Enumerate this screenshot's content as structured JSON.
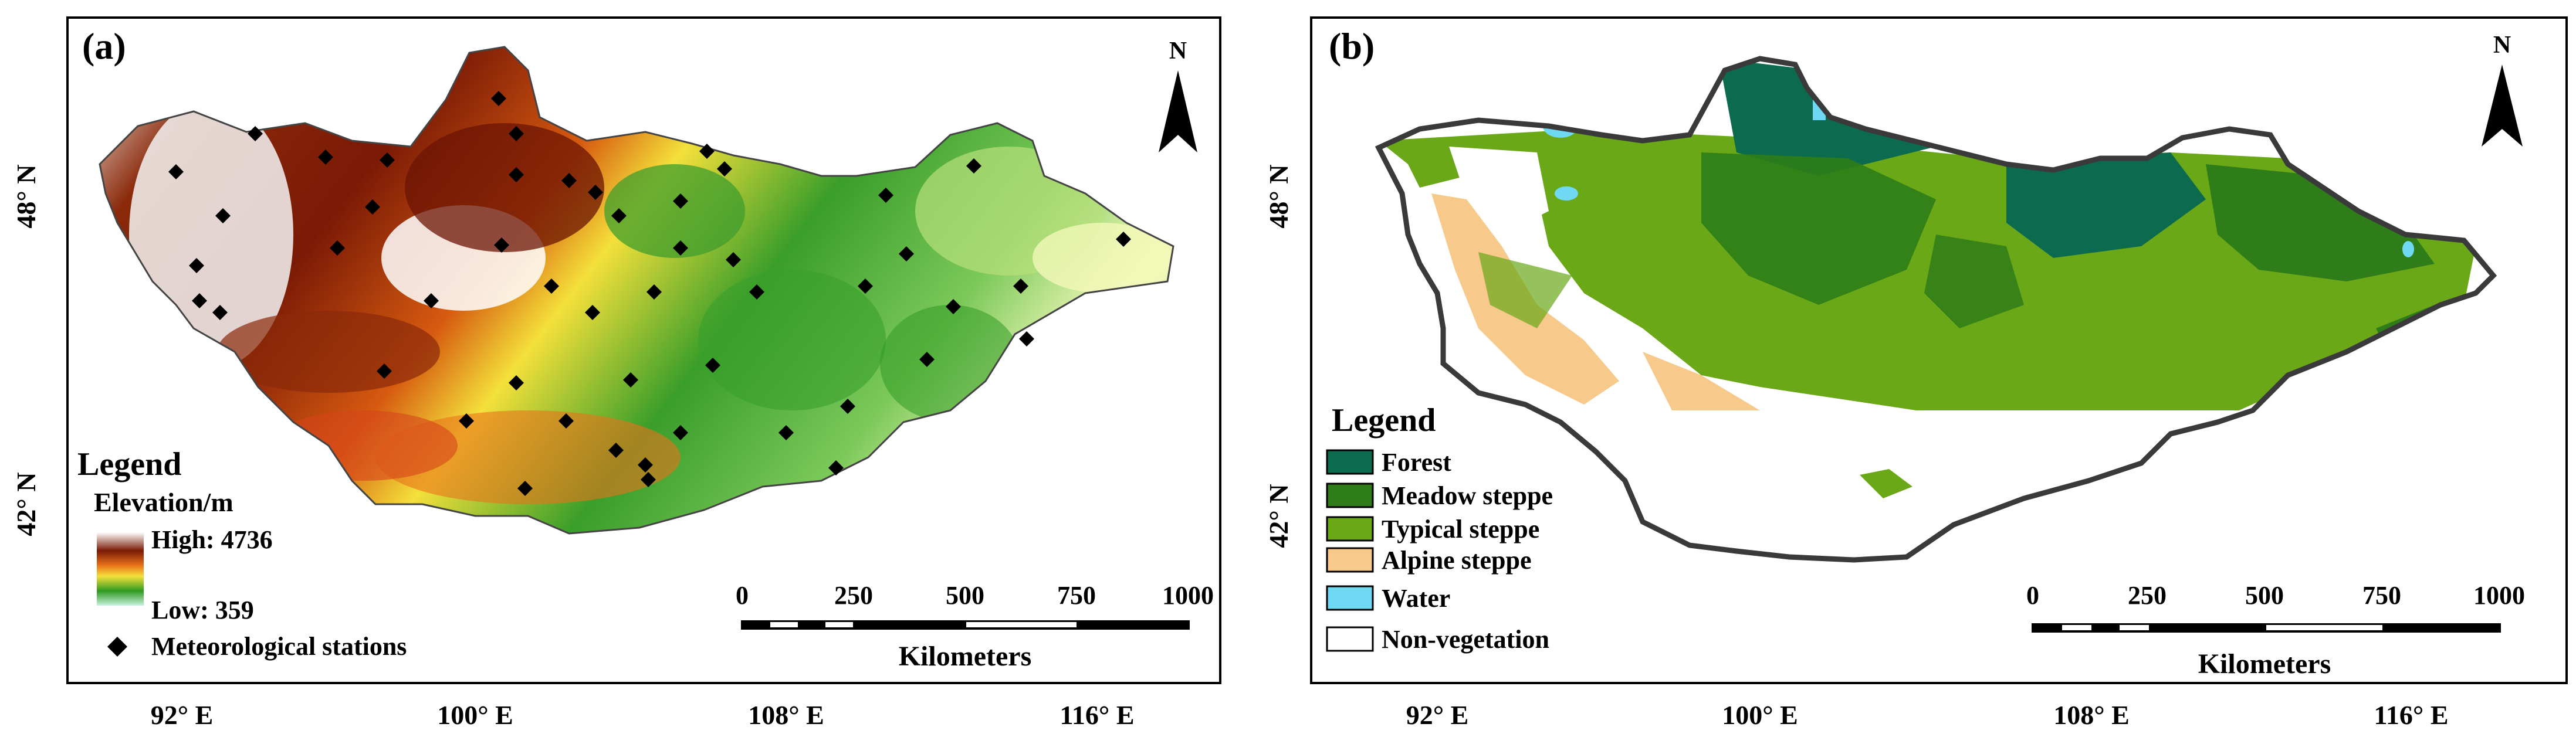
{
  "panels": {
    "a": {
      "label": "(a)",
      "north": "N",
      "lat_ticks": [
        "48° N",
        "42° N"
      ],
      "lon_ticks": [
        "92° E",
        "100° E",
        "108° E",
        "116° E"
      ],
      "legend": {
        "title": "Legend",
        "subtitle": "Elevation/m",
        "high": "High: 4736",
        "low": "Low: 359",
        "stations": "Meteorological stations"
      },
      "scale": {
        "ticks": [
          "0",
          "250",
          "500",
          "750",
          "1000"
        ],
        "unit": "Kilometers"
      },
      "colors": {
        "low": "#c8f2de",
        "mid": "#2f9a23",
        "yellow": "#f4e03a",
        "orange": "#e8731b",
        "brown": "#7a1a06",
        "high": "#ffffff"
      }
    },
    "b": {
      "label": "(b)",
      "north": "N",
      "lat_ticks": [
        "48° N",
        "42° N"
      ],
      "lon_ticks": [
        "92° E",
        "100° E",
        "108° E",
        "116° E"
      ],
      "legend": {
        "title": "Legend",
        "items": [
          {
            "label": "Forest",
            "color": "#0c6b4e"
          },
          {
            "label": "Meadow steppe",
            "color": "#2e7d18"
          },
          {
            "label": "Typical steppe",
            "color": "#6aa818"
          },
          {
            "label": "Alpine steppe",
            "color": "#f7c98a"
          },
          {
            "label": "Water",
            "color": "#6fd8f2"
          },
          {
            "label": "Non-vegetation",
            "color": "#ffffff"
          }
        ]
      },
      "scale": {
        "ticks": [
          "0",
          "250",
          "500",
          "750",
          "1000"
        ],
        "unit": "Kilometers"
      }
    }
  }
}
